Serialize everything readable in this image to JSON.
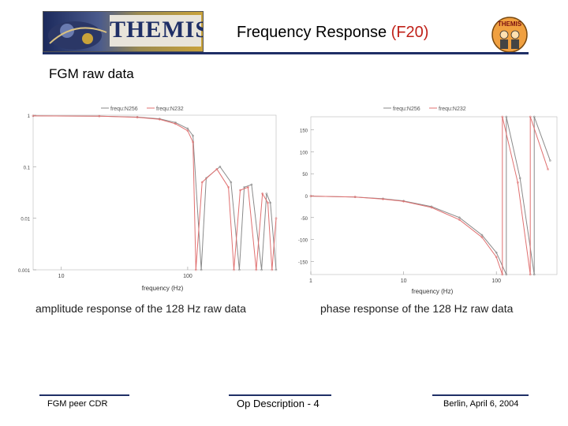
{
  "header": {
    "logo_text": "THEMIS",
    "title_main": "Frequency Response ",
    "title_code": "(F20)",
    "mascot_text": "THEMIS",
    "rule_color": "#1f2f66",
    "code_color": "#c0221a"
  },
  "section": {
    "title": "FGM raw data"
  },
  "chart_data": [
    {
      "type": "line",
      "scale": "log-log",
      "legend": [
        "frequ:N256",
        "frequ:N232"
      ],
      "legend_position": "top",
      "xlabel": "frequency (Hz)",
      "x_ticks": [
        "10",
        "100"
      ],
      "y_ticks": [
        "1",
        "0.1",
        "0.01",
        "0.001"
      ],
      "xlim": [
        6,
        500
      ],
      "ylim": [
        0.001,
        1
      ],
      "series": [
        {
          "name": "frequ:N256",
          "color": "#8a8a8a",
          "x": [
            6,
            20,
            40,
            60,
            80,
            100,
            110,
            128,
            140,
            180,
            220,
            256,
            280,
            320,
            384,
            420,
            450,
            500
          ],
          "y": [
            0.97,
            0.96,
            0.92,
            0.85,
            0.72,
            0.55,
            0.4,
            0.001,
            0.06,
            0.1,
            0.05,
            0.001,
            0.04,
            0.045,
            0.001,
            0.03,
            0.02,
            0.001
          ]
        },
        {
          "name": "frequ:N232",
          "color": "#e07070",
          "x": [
            6,
            20,
            40,
            60,
            80,
            100,
            110,
            116,
            130,
            170,
            210,
            232,
            260,
            300,
            348,
            390,
            430,
            464,
            500
          ],
          "y": [
            0.97,
            0.96,
            0.91,
            0.83,
            0.68,
            0.5,
            0.3,
            0.001,
            0.05,
            0.09,
            0.04,
            0.001,
            0.035,
            0.04,
            0.001,
            0.03,
            0.02,
            0.001,
            0.01
          ]
        }
      ],
      "caption": "amplitude response of the 128 Hz raw data"
    },
    {
      "type": "line",
      "scale": "semilog-x",
      "legend": [
        "frequ:N256",
        "frequ:N232"
      ],
      "legend_position": "top",
      "xlabel": "frequency (Hz)",
      "x_ticks": [
        "1",
        "10",
        "100"
      ],
      "y_ticks": [
        "150",
        "100",
        "50",
        "0",
        "-50",
        "-100",
        "-150"
      ],
      "xlim": [
        1,
        450
      ],
      "ylim": [
        -180,
        180
      ],
      "series": [
        {
          "name": "frequ:N256",
          "color": "#8a8a8a",
          "x": [
            1,
            3,
            6,
            10,
            20,
            40,
            70,
            100,
            128,
            128.1,
            180,
            256,
            256.1,
            380
          ],
          "y": [
            -1,
            -3,
            -7,
            -12,
            -25,
            -50,
            -90,
            -130,
            -180,
            180,
            40,
            -180,
            180,
            80
          ]
        },
        {
          "name": "frequ:N232",
          "color": "#e07070",
          "x": [
            1,
            3,
            6,
            10,
            20,
            40,
            70,
            100,
            116,
            116.1,
            170,
            232,
            232.1,
            360
          ],
          "y": [
            -1,
            -3,
            -8,
            -13,
            -27,
            -55,
            -95,
            -140,
            -180,
            180,
            30,
            -180,
            180,
            60
          ]
        }
      ],
      "caption": "phase response of the 128 Hz raw data"
    }
  ],
  "footer": {
    "left": "FGM peer CDR",
    "center": "Op Description - 4",
    "right": "Berlin, April 6, 2004"
  }
}
